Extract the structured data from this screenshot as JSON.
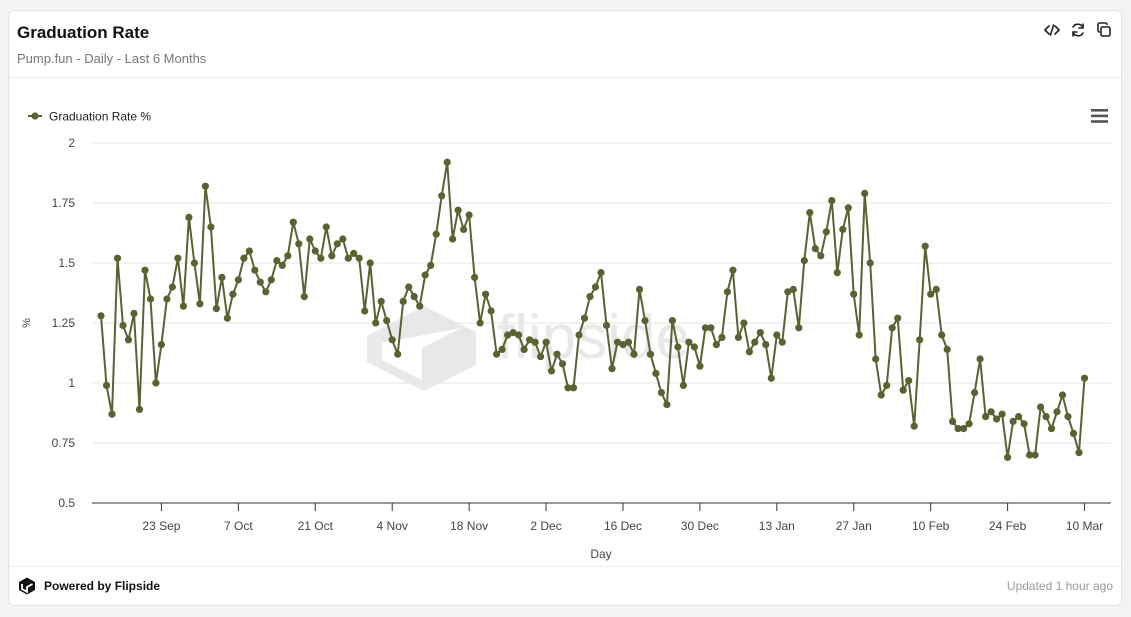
{
  "header": {
    "title": "Graduation Rate",
    "subtitle": "Pump.fun - Daily - Last 6 Months",
    "icons": [
      "code-icon",
      "refresh-icon",
      "copy-icon"
    ]
  },
  "footer": {
    "powered_by": "Powered by Flipside",
    "updated": "Updated 1 hour ago"
  },
  "watermark": "flipside",
  "chart_data": {
    "type": "line",
    "title": "",
    "xlabel": "Day",
    "ylabel": "%",
    "ylim": [
      0.5,
      2
    ],
    "y_ticks": [
      "2",
      "1.75",
      "1.5",
      "1.25",
      "1",
      "0.75",
      "0.5"
    ],
    "y_tick_values": [
      2,
      1.75,
      1.5,
      1.25,
      1,
      0.75,
      0.5
    ],
    "x_start_date": "2024-09-12",
    "x_ticks": [
      {
        "label": "23 Sep",
        "day": 11
      },
      {
        "label": "7 Oct",
        "day": 25
      },
      {
        "label": "21 Oct",
        "day": 39
      },
      {
        "label": "4 Nov",
        "day": 53
      },
      {
        "label": "18 Nov",
        "day": 67
      },
      {
        "label": "2 Dec",
        "day": 81
      },
      {
        "label": "16 Dec",
        "day": 95
      },
      {
        "label": "30 Dec",
        "day": 109
      },
      {
        "label": "13 Jan",
        "day": 123
      },
      {
        "label": "27 Jan",
        "day": 137
      },
      {
        "label": "10 Feb",
        "day": 151
      },
      {
        "label": "24 Feb",
        "day": 165
      },
      {
        "label": "10 Mar",
        "day": 179
      }
    ],
    "grid": true,
    "legend_position": "top-left",
    "color": "#5b6130",
    "series": [
      {
        "name": "Graduation Rate %",
        "values": [
          1.28,
          0.99,
          0.87,
          1.52,
          1.24,
          1.18,
          1.29,
          0.89,
          1.47,
          1.35,
          1.0,
          1.16,
          1.35,
          1.4,
          1.52,
          1.32,
          1.69,
          1.5,
          1.33,
          1.82,
          1.65,
          1.31,
          1.44,
          1.27,
          1.37,
          1.43,
          1.52,
          1.55,
          1.47,
          1.42,
          1.38,
          1.43,
          1.51,
          1.49,
          1.53,
          1.67,
          1.58,
          1.36,
          1.6,
          1.55,
          1.52,
          1.65,
          1.53,
          1.58,
          1.6,
          1.52,
          1.54,
          1.52,
          1.3,
          1.5,
          1.25,
          1.34,
          1.26,
          1.18,
          1.12,
          1.34,
          1.4,
          1.36,
          1.32,
          1.45,
          1.49,
          1.62,
          1.78,
          1.92,
          1.6,
          1.72,
          1.64,
          1.7,
          1.44,
          1.25,
          1.37,
          1.3,
          1.12,
          1.14,
          1.2,
          1.21,
          1.2,
          1.14,
          1.18,
          1.17,
          1.11,
          1.17,
          1.05,
          1.12,
          1.08,
          0.98,
          0.98,
          1.2,
          1.27,
          1.36,
          1.4,
          1.46,
          1.24,
          1.06,
          1.17,
          1.16,
          1.17,
          1.12,
          1.39,
          1.26,
          1.12,
          1.04,
          0.96,
          0.91,
          1.26,
          1.15,
          0.99,
          1.17,
          1.15,
          1.07,
          1.23,
          1.23,
          1.16,
          1.19,
          1.38,
          1.47,
          1.19,
          1.25,
          1.13,
          1.17,
          1.21,
          1.16,
          1.02,
          1.2,
          1.17,
          1.38,
          1.39,
          1.23,
          1.51,
          1.71,
          1.56,
          1.53,
          1.63,
          1.76,
          1.46,
          1.64,
          1.73,
          1.37,
          1.2,
          1.79,
          1.5,
          1.1,
          0.95,
          0.99,
          1.23,
          1.27,
          0.97,
          1.01,
          0.82,
          1.18,
          1.57,
          1.37,
          1.39,
          1.2,
          1.14,
          0.84,
          0.81,
          0.81,
          0.83,
          0.96,
          1.1,
          0.86,
          0.88,
          0.85,
          0.87,
          0.69,
          0.84,
          0.86,
          0.83,
          0.7,
          0.7,
          0.9,
          0.86,
          0.81,
          0.88,
          0.95,
          0.86,
          0.79,
          0.71,
          1.02
        ]
      }
    ]
  }
}
